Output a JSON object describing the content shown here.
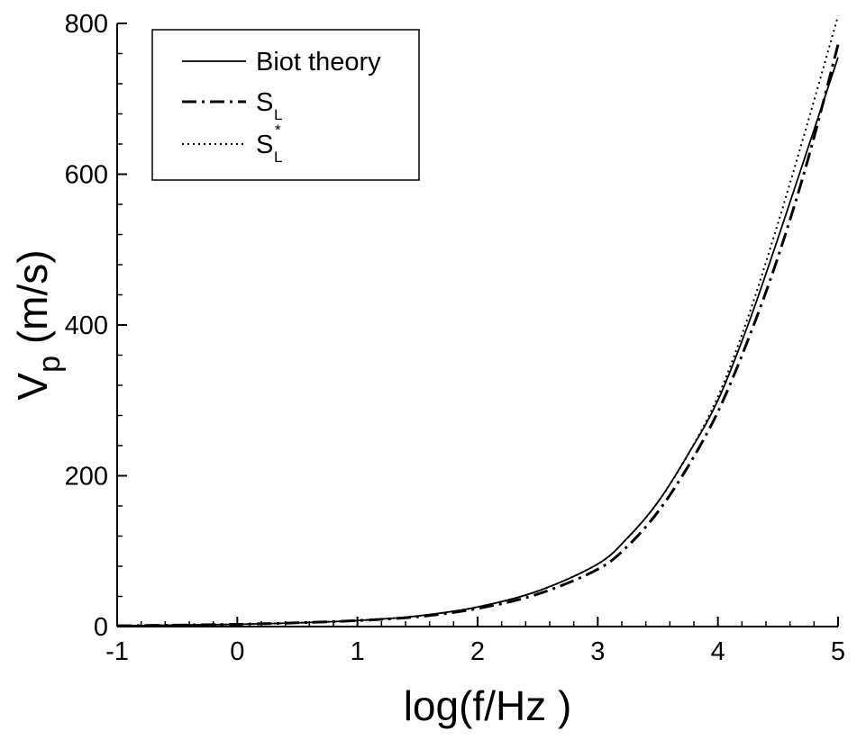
{
  "chart_data": {
    "type": "line",
    "title": "",
    "xlabel": "log(f/Hz )",
    "ylabel": "V",
    "ylabel_subscript": "p",
    "ylabel_unit": " (m/s)",
    "xlim": [
      -1,
      5
    ],
    "ylim": [
      0,
      800
    ],
    "x_ticks": [
      -1,
      0,
      1,
      2,
      3,
      4,
      5
    ],
    "y_ticks": [
      0,
      200,
      400,
      600,
      800
    ],
    "x_tick_labels": [
      "-1",
      "0",
      "1",
      "2",
      "3",
      "4",
      "5"
    ],
    "y_tick_labels": [
      "0",
      "200",
      "400",
      "600",
      "800"
    ],
    "grid": false,
    "legend_position": "top-left",
    "x": [
      -1,
      -0.5,
      0,
      0.5,
      1,
      1.5,
      2,
      2.5,
      3,
      3.25,
      3.5,
      3.75,
      4,
      4.25,
      4.5,
      4.75,
      5
    ],
    "series": [
      {
        "name": "Biot theory",
        "name_main": "Biot theory",
        "name_sub": "",
        "name_sup": "",
        "style": "solid",
        "color": "#000000",
        "values": [
          1,
          2,
          3,
          5,
          8,
          14,
          26,
          47,
          83,
          118,
          165,
          228,
          300,
          400,
          515,
          635,
          755
        ]
      },
      {
        "name": "S_L",
        "name_main": "S",
        "name_sub": "L",
        "name_sup": "",
        "style": "dashdot",
        "color": "#000000",
        "values": [
          1,
          2,
          3,
          5,
          8,
          13,
          24,
          43,
          76,
          107,
          152,
          212,
          285,
          380,
          490,
          620,
          772
        ]
      },
      {
        "name": "S_L*",
        "name_main": "S",
        "name_sub": "L",
        "name_sup": "*",
        "style": "dotted",
        "color": "#000000",
        "values": [
          1,
          2,
          3,
          5,
          8,
          14,
          26,
          47,
          83,
          118,
          165,
          228,
          305,
          410,
          535,
          670,
          810
        ]
      }
    ]
  }
}
